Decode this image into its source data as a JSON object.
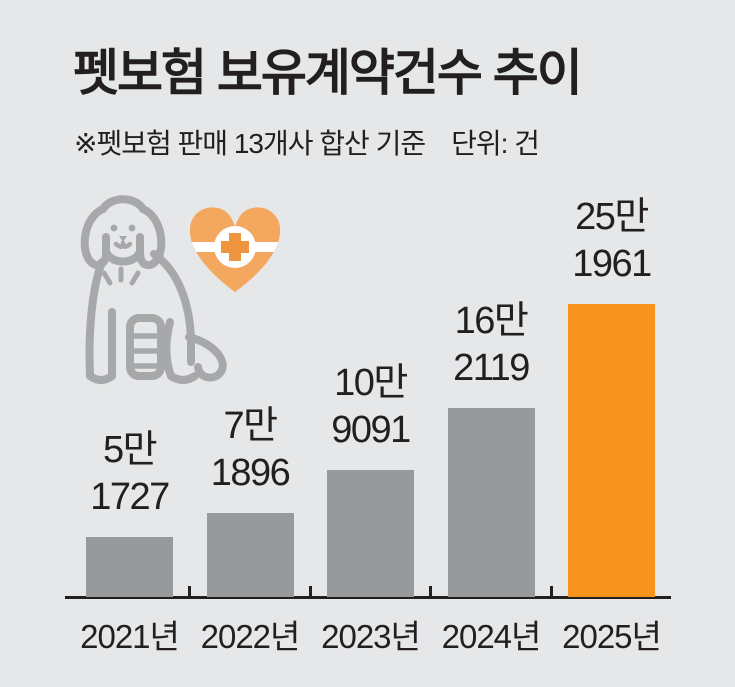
{
  "header": {
    "title": "펫보험 보유계약건수 추이",
    "note": "※펫보험 판매 13개사 합산 기준",
    "unit_label": "단위: 건"
  },
  "icons": {
    "dog": "dog-with-bandaged-leg-icon",
    "heart": "heart-medical-cross-icon"
  },
  "colors": {
    "background": "#e6e7e8",
    "text": "#231f20",
    "bar_default": "#98999b",
    "bar_highlight": "#f7941e",
    "heart_orange": "#f3a75f",
    "cross_orange": "#f0953f",
    "icon_gray": "#a7a8aa"
  },
  "chart_data": {
    "type": "bar",
    "title": "펫보험 보유계약건수 추이",
    "note": "※펫보험 판매 13개사 합산 기준",
    "unit": "건",
    "categories": [
      "2021년",
      "2022년",
      "2023년",
      "2024년",
      "2025년"
    ],
    "values": [
      51727,
      71896,
      109091,
      162119,
      251961
    ],
    "value_labels": [
      [
        "5만",
        "1727"
      ],
      [
        "7만",
        "1896"
      ],
      [
        "10만",
        "9091"
      ],
      [
        "16만",
        "2119"
      ],
      [
        "25만",
        "1961"
      ]
    ],
    "highlight_index": 4,
    "ylim": [
      0,
      251961
    ],
    "grid": false,
    "legend": false,
    "xlabel": "",
    "ylabel": ""
  }
}
